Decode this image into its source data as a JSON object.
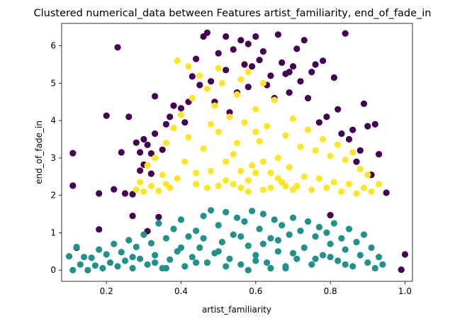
{
  "chart_data": {
    "type": "scatter",
    "title": "Clustered numerical_data between Features artist_familiarity, end_of_fade_in",
    "xlabel": "artist_familiarity",
    "ylabel": "end_of_fade_in",
    "xlim": [
      0.08,
      1.02
    ],
    "ylim": [
      -0.3,
      6.6
    ],
    "xticks": [
      0.2,
      0.4,
      0.6,
      0.8,
      1.0
    ],
    "xtick_labels": [
      "0.2",
      "0.4",
      "0.6",
      "0.8",
      "1.0"
    ],
    "yticks": [
      0,
      1,
      2,
      3,
      4,
      5,
      6
    ],
    "ytick_labels": [
      "0",
      "1",
      "2",
      "3",
      "4",
      "5",
      "6"
    ],
    "grid": false,
    "legend": "none",
    "series": [
      {
        "color": "#440154",
        "points": [
          [
            0.11,
            3.13
          ],
          [
            0.11,
            2.26
          ],
          [
            0.18,
            1.09
          ],
          [
            0.18,
            2.05
          ],
          [
            0.2,
            4.13
          ],
          [
            0.22,
            2.16
          ],
          [
            0.23,
            5.96
          ],
          [
            0.24,
            3.15
          ],
          [
            0.25,
            2.05
          ],
          [
            0.26,
            4.1
          ],
          [
            0.27,
            1.45
          ],
          [
            0.27,
            2.03
          ],
          [
            0.28,
            3.41
          ],
          [
            0.29,
            3.15
          ],
          [
            0.29,
            2.66
          ],
          [
            0.3,
            2.82
          ],
          [
            0.3,
            3.5
          ],
          [
            0.31,
            3.35
          ],
          [
            0.31,
            1.04
          ],
          [
            0.32,
            3.12
          ],
          [
            0.32,
            2.58
          ],
          [
            0.33,
            3.65
          ],
          [
            0.33,
            4.65
          ],
          [
            0.34,
            1.42
          ],
          [
            0.35,
            3.22
          ],
          [
            0.36,
            3.9
          ],
          [
            0.37,
            4.1
          ],
          [
            0.38,
            4.4
          ],
          [
            0.4,
            4.33
          ],
          [
            0.41,
            3.95
          ],
          [
            0.42,
            4.5
          ],
          [
            0.43,
            5.18
          ],
          [
            0.44,
            5.65
          ],
          [
            0.45,
            4.95
          ],
          [
            0.46,
            6.25
          ],
          [
            0.47,
            6.35
          ],
          [
            0.48,
            5.05
          ],
          [
            0.49,
            4.5
          ],
          [
            0.5,
            5.8
          ],
          [
            0.52,
            5.35
          ],
          [
            0.53,
            4.22
          ],
          [
            0.54,
            5.9
          ],
          [
            0.55,
            4.75
          ],
          [
            0.56,
            6.15
          ],
          [
            0.57,
            5.5
          ],
          [
            0.58,
            6.05
          ],
          [
            0.59,
            5.45
          ],
          [
            0.6,
            6.25
          ],
          [
            0.61,
            5.62
          ],
          [
            0.62,
            5.85
          ],
          [
            0.63,
            4.95
          ],
          [
            0.64,
            5.2
          ],
          [
            0.65,
            4.6
          ],
          [
            0.66,
            6.3
          ],
          [
            0.67,
            5.55
          ],
          [
            0.68,
            5.25
          ],
          [
            0.69,
            4.75
          ],
          [
            0.7,
            5.45
          ],
          [
            0.71,
            5.92
          ],
          [
            0.72,
            5.05
          ],
          [
            0.73,
            6.15
          ],
          [
            0.74,
            4.6
          ],
          [
            0.75,
            5.3
          ],
          [
            0.76,
            5.5
          ],
          [
            0.77,
            3.95
          ],
          [
            0.78,
            5.6
          ],
          [
            0.79,
            4.1
          ],
          [
            0.8,
            1.47
          ],
          [
            0.81,
            5.15
          ],
          [
            0.82,
            4.3
          ],
          [
            0.83,
            3.65
          ],
          [
            0.84,
            6.33
          ],
          [
            0.85,
            3.5
          ],
          [
            0.86,
            3.75
          ],
          [
            0.87,
            2.9
          ],
          [
            0.88,
            3.2
          ],
          [
            0.89,
            4.45
          ],
          [
            0.9,
            3.85
          ],
          [
            0.91,
            2.55
          ],
          [
            0.92,
            3.9
          ],
          [
            0.93,
            3.1
          ],
          [
            0.95,
            2.07
          ],
          [
            0.99,
            0.01
          ],
          [
            1.0,
            0.42
          ],
          [
            0.12,
            0.6
          ],
          [
            0.52,
            6.25
          ],
          [
            0.58,
            4.9
          ],
          [
            0.69,
            5.3
          ]
        ]
      },
      {
        "color": "#21918c",
        "points": [
          [
            0.1,
            0.37
          ],
          [
            0.11,
            0.0
          ],
          [
            0.12,
            0.62
          ],
          [
            0.13,
            0.15
          ],
          [
            0.14,
            0.35
          ],
          [
            0.15,
            0.0
          ],
          [
            0.16,
            0.33
          ],
          [
            0.17,
            0.12
          ],
          [
            0.18,
            0.55
          ],
          [
            0.19,
            0.05
          ],
          [
            0.2,
            0.42
          ],
          [
            0.21,
            0.2
          ],
          [
            0.22,
            0.7
          ],
          [
            0.23,
            0.1
          ],
          [
            0.24,
            0.48
          ],
          [
            0.25,
            0.25
          ],
          [
            0.26,
            0.8
          ],
          [
            0.27,
            0.05
          ],
          [
            0.28,
            0.62
          ],
          [
            0.29,
            0.3
          ],
          [
            0.3,
            0.95
          ],
          [
            0.31,
            0.15
          ],
          [
            0.32,
            0.72
          ],
          [
            0.33,
            0.4
          ],
          [
            0.34,
            1.25
          ],
          [
            0.35,
            0.05
          ],
          [
            0.36,
            0.85
          ],
          [
            0.37,
            0.28
          ],
          [
            0.38,
            1.1
          ],
          [
            0.39,
            0.5
          ],
          [
            0.4,
            1.35
          ],
          [
            0.41,
            0.1
          ],
          [
            0.42,
            0.9
          ],
          [
            0.43,
            0.35
          ],
          [
            0.44,
            1.05
          ],
          [
            0.45,
            0.6
          ],
          [
            0.46,
            1.45
          ],
          [
            0.47,
            0.2
          ],
          [
            0.48,
            1.6
          ],
          [
            0.49,
            0.45
          ],
          [
            0.5,
            1.2
          ],
          [
            0.51,
            0.75
          ],
          [
            0.52,
            1.55
          ],
          [
            0.53,
            0.3
          ],
          [
            0.54,
            0.95
          ],
          [
            0.55,
            1.4
          ],
          [
            0.56,
            0.15
          ],
          [
            0.57,
            1.3
          ],
          [
            0.58,
            0.65
          ],
          [
            0.59,
            1.58
          ],
          [
            0.6,
            0.4
          ],
          [
            0.61,
            1.1
          ],
          [
            0.62,
            1.5
          ],
          [
            0.63,
            0.2
          ],
          [
            0.64,
            0.85
          ],
          [
            0.65,
            1.35
          ],
          [
            0.66,
            0.5
          ],
          [
            0.67,
            1.2
          ],
          [
            0.68,
            0.1
          ],
          [
            0.69,
            0.95
          ],
          [
            0.7,
            1.4
          ],
          [
            0.71,
            0.3
          ],
          [
            0.72,
            1.05
          ],
          [
            0.73,
            0.6
          ],
          [
            0.74,
            1.3
          ],
          [
            0.75,
            0.15
          ],
          [
            0.76,
            0.9
          ],
          [
            0.77,
            1.15
          ],
          [
            0.78,
            0.4
          ],
          [
            0.79,
            1.0
          ],
          [
            0.8,
            0.7
          ],
          [
            0.81,
            1.25
          ],
          [
            0.82,
            0.25
          ],
          [
            0.83,
            0.85
          ],
          [
            0.84,
            0.55
          ],
          [
            0.85,
            1.1
          ],
          [
            0.86,
            0.1
          ],
          [
            0.87,
            0.75
          ],
          [
            0.88,
            0.4
          ],
          [
            0.89,
            0.95
          ],
          [
            0.9,
            0.2
          ],
          [
            0.91,
            0.6
          ],
          [
            0.92,
            0.05
          ],
          [
            0.93,
            0.35
          ],
          [
            0.94,
            0.15
          ],
          [
            0.36,
            0.05
          ],
          [
            0.44,
            0.2
          ],
          [
            0.52,
            0.1
          ],
          [
            0.6,
            0.25
          ],
          [
            0.68,
            0.05
          ],
          [
            0.76,
            0.3
          ],
          [
            0.84,
            0.15
          ],
          [
            0.4,
            0.6
          ],
          [
            0.5,
            0.5
          ],
          [
            0.62,
            0.7
          ],
          [
            0.7,
            0.45
          ],
          [
            0.8,
            0.35
          ],
          [
            0.46,
            0.85
          ],
          [
            0.56,
            0.9
          ],
          [
            0.66,
            0.8
          ],
          [
            0.33,
            0.2
          ],
          [
            0.27,
            0.35
          ],
          [
            0.58,
            0.0
          ],
          [
            0.64,
            0.05
          ]
        ]
      },
      {
        "color": "#fde725",
        "points": [
          [
            0.28,
            2.15
          ],
          [
            0.29,
            2.35
          ],
          [
            0.3,
            2.1
          ],
          [
            0.31,
            2.8
          ],
          [
            0.32,
            2.25
          ],
          [
            0.33,
            3.0
          ],
          [
            0.34,
            2.12
          ],
          [
            0.35,
            2.55
          ],
          [
            0.36,
            3.4
          ],
          [
            0.37,
            2.2
          ],
          [
            0.38,
            3.8
          ],
          [
            0.39,
            2.45
          ],
          [
            0.4,
            4.15
          ],
          [
            0.41,
            2.9
          ],
          [
            0.42,
            3.55
          ],
          [
            0.43,
            4.6
          ],
          [
            0.44,
            2.3
          ],
          [
            0.45,
            5.2
          ],
          [
            0.46,
            3.25
          ],
          [
            0.47,
            4.85
          ],
          [
            0.48,
            2.65
          ],
          [
            0.49,
            4.4
          ],
          [
            0.5,
            3.7
          ],
          [
            0.51,
            5.0
          ],
          [
            0.52,
            2.4
          ],
          [
            0.53,
            4.1
          ],
          [
            0.54,
            3.1
          ],
          [
            0.55,
            4.7
          ],
          [
            0.56,
            2.2
          ],
          [
            0.57,
            3.95
          ],
          [
            0.58,
            5.3
          ],
          [
            0.59,
            2.8
          ],
          [
            0.6,
            4.3
          ],
          [
            0.61,
            3.45
          ],
          [
            0.62,
            2.15
          ],
          [
            0.63,
            3.85
          ],
          [
            0.64,
            2.6
          ],
          [
            0.65,
            4.55
          ],
          [
            0.66,
            3.0
          ],
          [
            0.67,
            2.35
          ],
          [
            0.68,
            3.6
          ],
          [
            0.69,
            2.75
          ],
          [
            0.7,
            4.05
          ],
          [
            0.71,
            2.25
          ],
          [
            0.72,
            3.3
          ],
          [
            0.73,
            2.5
          ],
          [
            0.74,
            3.75
          ],
          [
            0.75,
            2.15
          ],
          [
            0.76,
            3.2
          ],
          [
            0.77,
            2.45
          ],
          [
            0.78,
            3.5
          ],
          [
            0.79,
            2.2
          ],
          [
            0.8,
            3.05
          ],
          [
            0.81,
            2.35
          ],
          [
            0.82,
            3.35
          ],
          [
            0.83,
            2.1
          ],
          [
            0.84,
            2.95
          ],
          [
            0.85,
            2.3
          ],
          [
            0.86,
            3.15
          ],
          [
            0.87,
            2.05
          ],
          [
            0.88,
            2.7
          ],
          [
            0.89,
            2.2
          ],
          [
            0.9,
            2.55
          ],
          [
            0.91,
            2.1
          ],
          [
            0.93,
            2.3
          ],
          [
            0.39,
            5.6
          ],
          [
            0.42,
            5.45
          ],
          [
            0.5,
            5.4
          ],
          [
            0.56,
            5.1
          ],
          [
            0.62,
            5.0
          ],
          [
            0.47,
            2.2
          ],
          [
            0.54,
            2.3
          ],
          [
            0.58,
            2.1
          ],
          [
            0.6,
            2.6
          ],
          [
            0.64,
            2.2
          ],
          [
            0.52,
            2.9
          ],
          [
            0.44,
            2.6
          ],
          [
            0.36,
            2.3
          ],
          [
            0.66,
            2.45
          ],
          [
            0.7,
            2.15
          ],
          [
            0.55,
            3.4
          ],
          [
            0.48,
            3.9
          ],
          [
            0.6,
            3.7
          ],
          [
            0.58,
            2.4
          ],
          [
            0.62,
            2.9
          ],
          [
            0.56,
            2.65
          ],
          [
            0.5,
            2.25
          ],
          [
            0.68,
            2.25
          ]
        ]
      }
    ]
  }
}
